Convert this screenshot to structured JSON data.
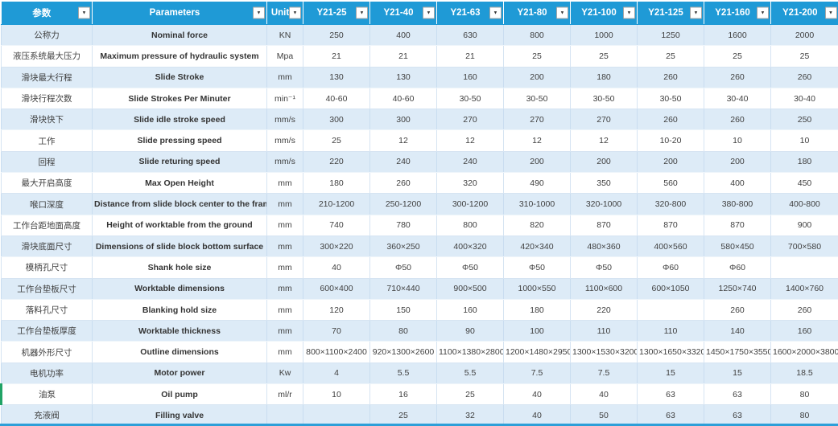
{
  "colors": {
    "header_bg": "#1f9ad6",
    "header_text": "#ffffff",
    "shaded_row_bg": "#ddebf7",
    "white_row_bg": "#ffffff",
    "body_text": "#404040",
    "grid_line": "#d6e4f2",
    "selection_mark_green": "#21a366",
    "bottom_strip_blue": "#2d9fd8"
  },
  "icons": {
    "filter_dropdown_glyph": "▼"
  },
  "table": {
    "columns": [
      {
        "key": "cn",
        "label": "参数",
        "filter": true
      },
      {
        "key": "en",
        "label": "Parameters",
        "filter": true
      },
      {
        "key": "unit",
        "label": "Unit",
        "filter": true
      },
      {
        "key": "y21-25",
        "label": "Y21-25",
        "filter": true
      },
      {
        "key": "y21-40",
        "label": "Y21-40",
        "filter": true
      },
      {
        "key": "y21-63",
        "label": "Y21-63",
        "filter": true
      },
      {
        "key": "y21-80",
        "label": "Y21-80",
        "filter": true
      },
      {
        "key": "y21-100",
        "label": "Y21-100",
        "filter": true
      },
      {
        "key": "y21-125",
        "label": "Y21-125",
        "filter": true
      },
      {
        "key": "y21-160",
        "label": "Y21-160",
        "filter": true
      },
      {
        "key": "y21-200",
        "label": "Y21-200",
        "filter": true
      }
    ],
    "rows": [
      {
        "cn": "公称力",
        "en": "Nominal force",
        "unit": "KN",
        "values": [
          "250",
          "400",
          "630",
          "800",
          "1000",
          "1250",
          "1600",
          "2000"
        ]
      },
      {
        "cn": "液压系统最大压力",
        "en": "Maximum pressure of hydraulic system",
        "unit": "Mpa",
        "values": [
          "21",
          "21",
          "21",
          "25",
          "25",
          "25",
          "25",
          "25"
        ]
      },
      {
        "cn": "滑块最大行程",
        "en": "Slide Stroke",
        "unit": "mm",
        "values": [
          "130",
          "130",
          "160",
          "200",
          "180",
          "260",
          "260",
          "260"
        ]
      },
      {
        "cn": "滑块行程次数",
        "en": "Slide Strokes Per Minuter",
        "unit": "min⁻¹",
        "values": [
          "40-60",
          "40-60",
          "30-50",
          "30-50",
          "30-50",
          "30-50",
          "30-40",
          "30-40"
        ]
      },
      {
        "cn": "滑块快下",
        "en": "Slide idle stroke speed",
        "unit": "mm/s",
        "values": [
          "300",
          "300",
          "270",
          "270",
          "270",
          "260",
          "260",
          "250"
        ]
      },
      {
        "cn": "工作",
        "en": "Slide pressing speed",
        "unit": "mm/s",
        "values": [
          "25",
          "12",
          "12",
          "12",
          "12",
          "10-20",
          "10",
          "10"
        ]
      },
      {
        "cn": "回程",
        "en": "Slide returing speed",
        "unit": "mm/s",
        "values": [
          "220",
          "240",
          "240",
          "200",
          "200",
          "200",
          "200",
          "180"
        ]
      },
      {
        "cn": "最大开启高度",
        "en": "Max Open Height",
        "unit": "mm",
        "values": [
          "180",
          "260",
          "320",
          "490",
          "350",
          "560",
          "400",
          "450"
        ]
      },
      {
        "cn": "喉口深度",
        "en": "Distance from slide block center to the frame",
        "unit": "mm",
        "values": [
          "210-1200",
          "250-1200",
          "300-1200",
          "310-1000",
          "320-1000",
          "320-800",
          "380-800",
          "400-800"
        ]
      },
      {
        "cn": "工作台距地面高度",
        "en": "Height of worktable from the ground",
        "unit": "mm",
        "values": [
          "740",
          "780",
          "800",
          "820",
          "870",
          "870",
          "870",
          "900"
        ]
      },
      {
        "cn": "滑块底面尺寸",
        "en": "Dimensions of slide block bottom surface",
        "unit": "mm",
        "values": [
          "300×220",
          "360×250",
          "400×320",
          "420×340",
          "480×360",
          "400×560",
          "580×450",
          "700×580"
        ]
      },
      {
        "cn": "模柄孔尺寸",
        "en": "Shank hole size",
        "unit": "mm",
        "values": [
          "40",
          "Φ50",
          "Φ50",
          "Φ50",
          "Φ50",
          "Φ60",
          "Φ60",
          ""
        ]
      },
      {
        "cn": "工作台垫板尺寸",
        "en": "Worktable dimensions",
        "unit": "mm",
        "values": [
          "600×400",
          "710×440",
          "900×500",
          "1000×550",
          "1100×600",
          "600×1050",
          "1250×740",
          "1400×760"
        ]
      },
      {
        "cn": "落料孔尺寸",
        "en": "Blanking hold size",
        "unit": "mm",
        "values": [
          "120",
          "150",
          "160",
          "180",
          "220",
          "",
          "260",
          "260"
        ]
      },
      {
        "cn": "工作台垫板厚度",
        "en": "Worktable thickness",
        "unit": "mm",
        "values": [
          "70",
          "80",
          "90",
          "100",
          "110",
          "110",
          "140",
          "160"
        ]
      },
      {
        "cn": "机器外形尺寸",
        "en": "Outline dimensions",
        "unit": "mm",
        "values": [
          "800×1100×2400",
          "920×1300×2600",
          "1100×1380×2800",
          "1200×1480×2950",
          "1300×1530×3200",
          "1300×1650×3320",
          "1450×1750×3550",
          "1600×2000×3800"
        ]
      },
      {
        "cn": "电机功率",
        "en": "Motor power",
        "unit": "Kw",
        "values": [
          "4",
          "5.5",
          "5.5",
          "7.5",
          "7.5",
          "15",
          "15",
          "18.5"
        ]
      },
      {
        "cn": "油泵",
        "en": "Oil pump",
        "unit": "ml/r",
        "values": [
          "10",
          "16",
          "25",
          "40",
          "40",
          "63",
          "63",
          "80"
        ],
        "green_left": true
      },
      {
        "cn": "充液阀",
        "en": "Filling valve",
        "unit": "",
        "values": [
          "",
          "25",
          "32",
          "40",
          "50",
          "63",
          "63",
          "80"
        ]
      }
    ]
  }
}
